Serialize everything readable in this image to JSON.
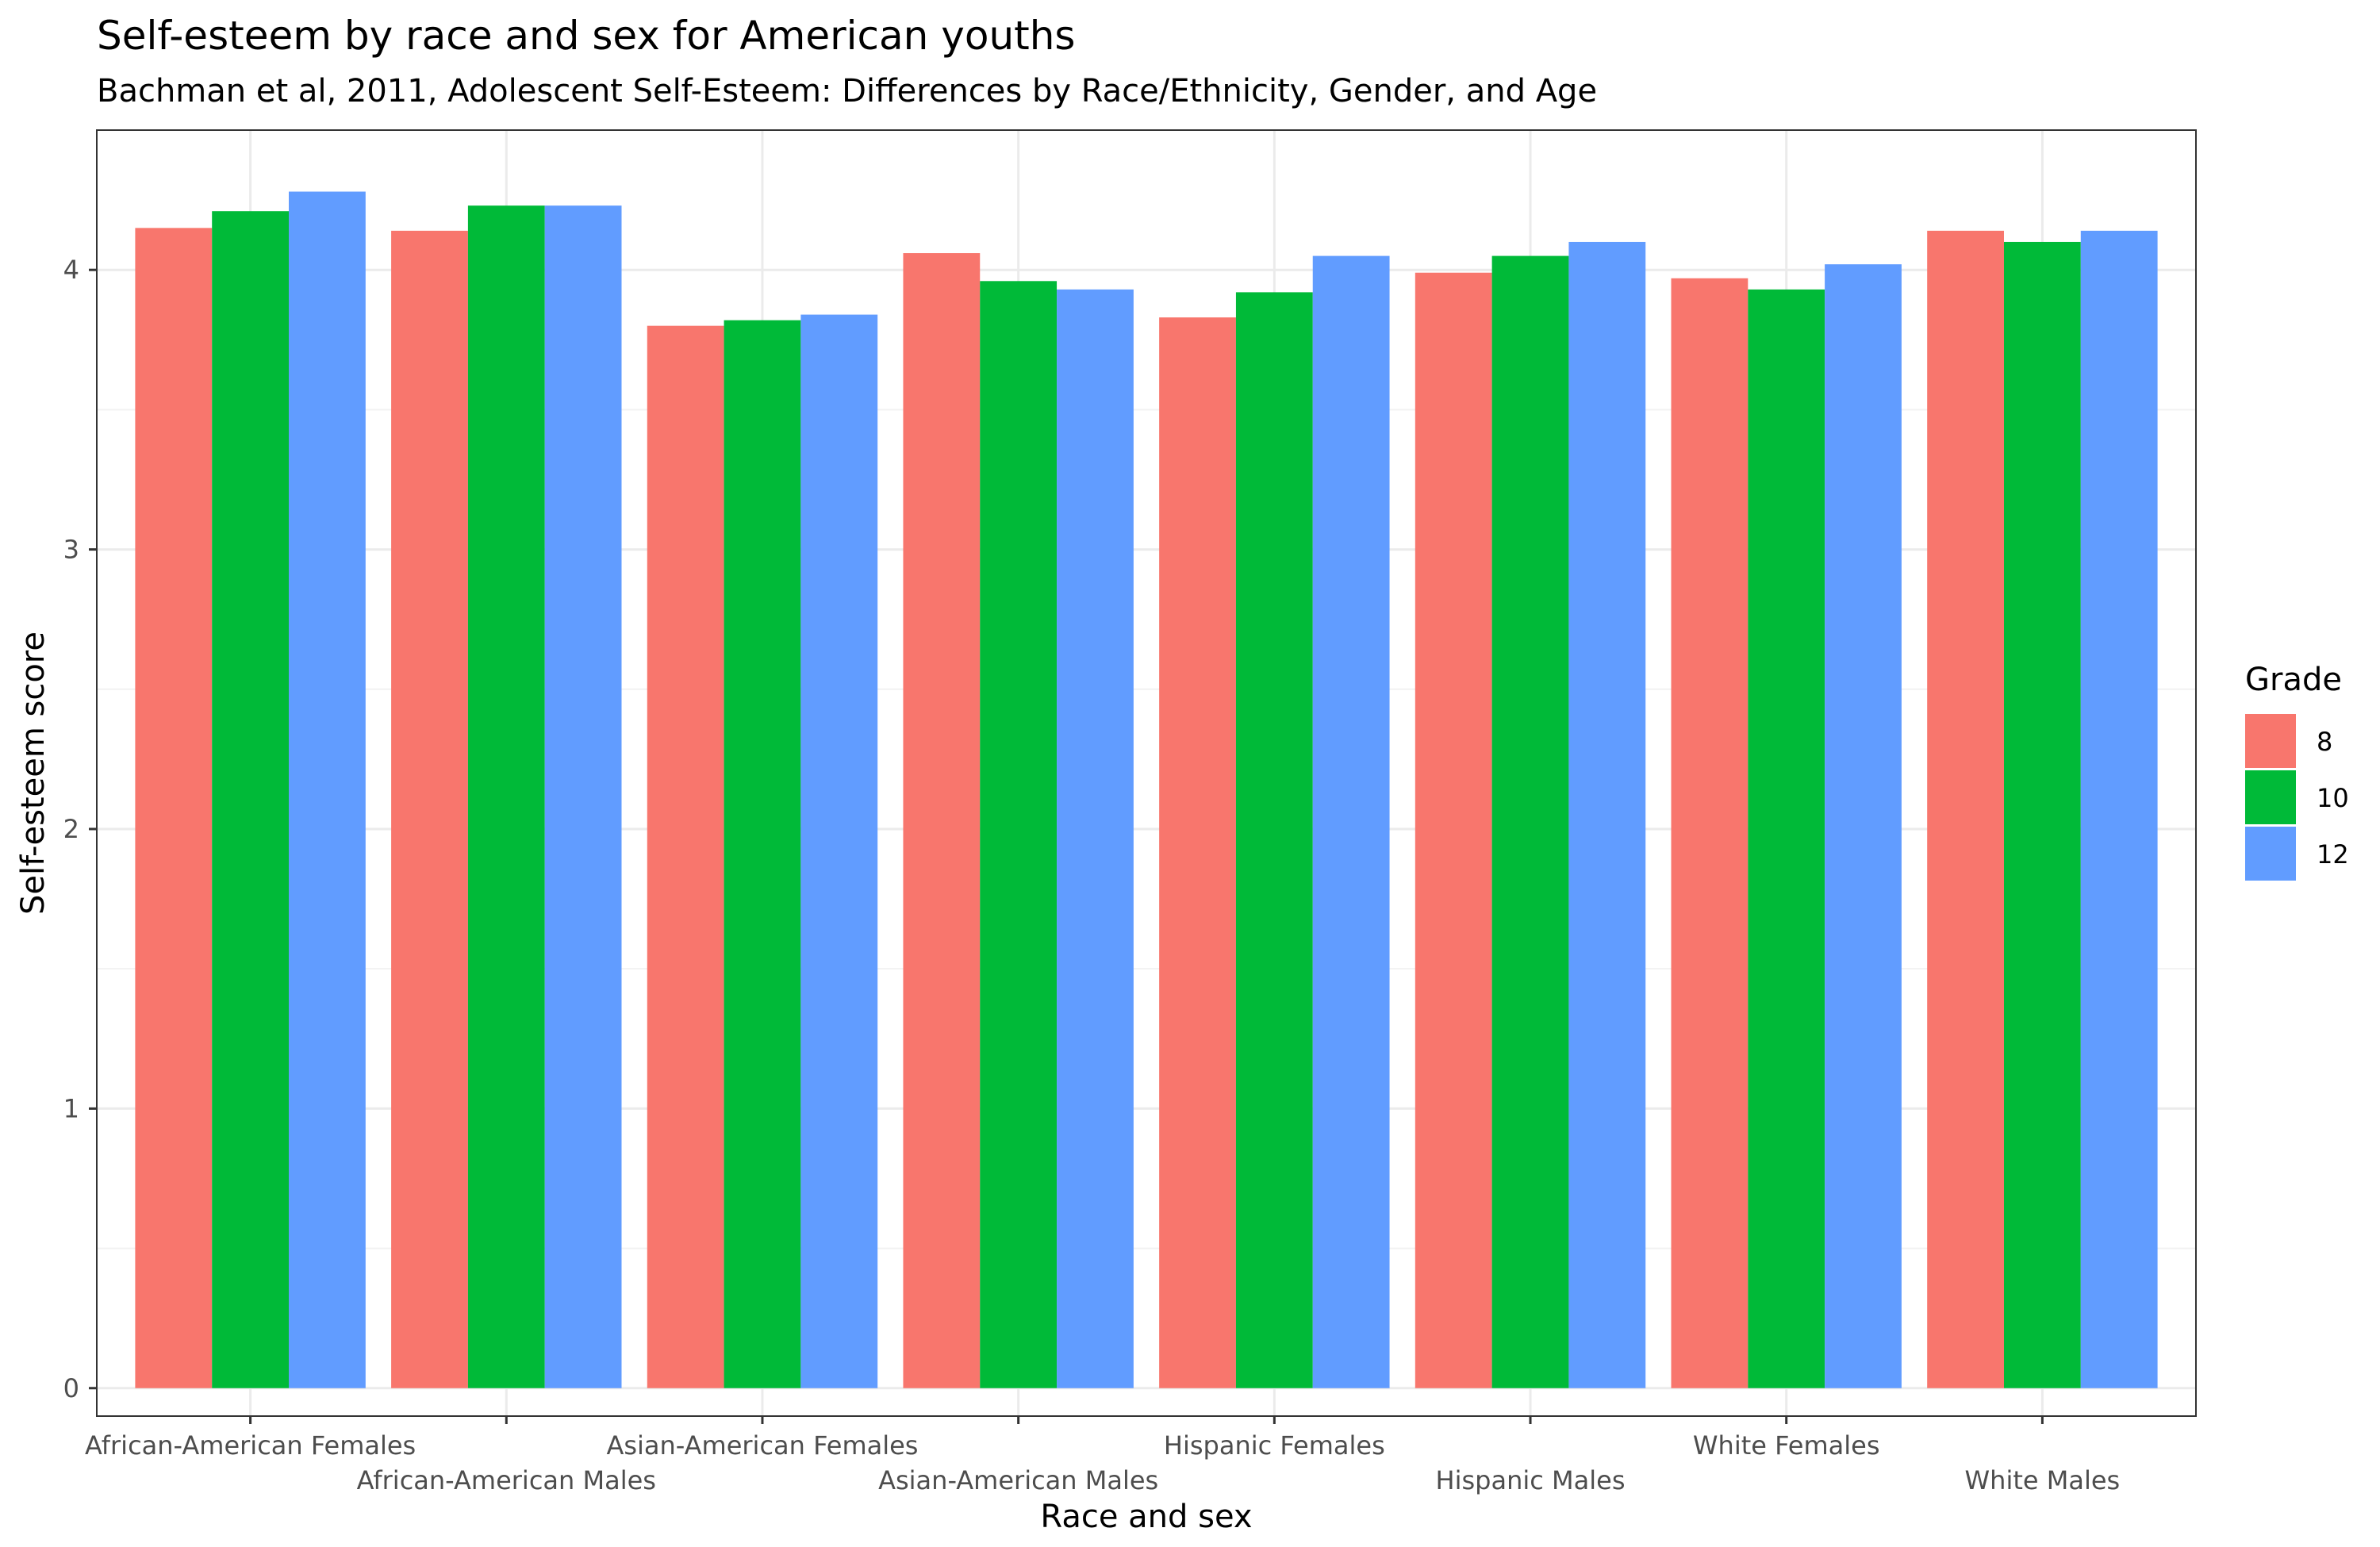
{
  "chart_data": {
    "type": "bar",
    "title": "Self-esteem by race and sex for American youths",
    "subtitle": "Bachman et al, 2011, Adolescent Self-Esteem: Differences by Race/Ethnicity, Gender, and Age",
    "xlabel": "Race and sex",
    "ylabel": "Self-esteem score",
    "ylim": [
      -0.1,
      4.5
    ],
    "yticks": [
      0,
      1,
      2,
      3,
      4
    ],
    "grid": true,
    "legend": {
      "title": "Grade",
      "position": "right"
    },
    "categories": [
      "African-American Females",
      "African-American Males",
      "Asian-American Females",
      "Asian-American Males",
      "Hispanic Females",
      "Hispanic Males",
      "White Females",
      "White Males"
    ],
    "series": [
      {
        "name": "8",
        "color": "#F8766D",
        "values": [
          4.15,
          4.14,
          3.8,
          4.06,
          3.83,
          3.99,
          3.97,
          4.14
        ]
      },
      {
        "name": "10",
        "color": "#00BA38",
        "values": [
          4.21,
          4.23,
          3.82,
          3.96,
          3.92,
          4.05,
          3.93,
          4.1
        ]
      },
      {
        "name": "12",
        "color": "#619CFF",
        "values": [
          4.28,
          4.23,
          3.84,
          3.93,
          4.05,
          4.1,
          4.02,
          4.14
        ]
      }
    ]
  }
}
